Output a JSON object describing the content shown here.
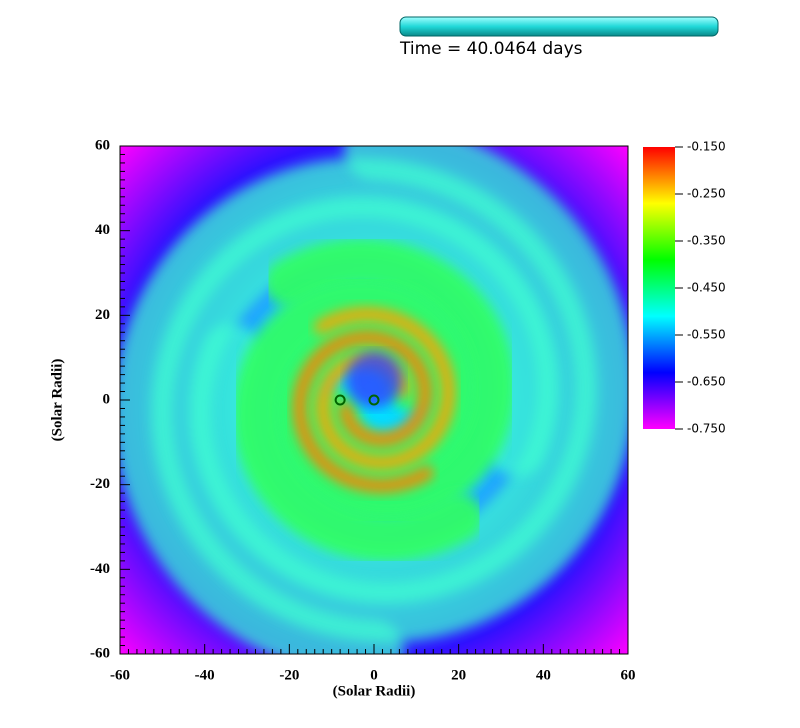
{
  "chart_data": {
    "type": "heatmap",
    "annotation": "Time = 40.0464 days",
    "xlabel": "(Solar Radii)",
    "ylabel": "(Solar Radii)",
    "xlim": [
      -60,
      60
    ],
    "ylim": [
      -60,
      60
    ],
    "xticks": [
      -60,
      -40,
      -20,
      0,
      20,
      40,
      60
    ],
    "yticks": [
      -60,
      -40,
      -20,
      0,
      20,
      40,
      60
    ],
    "clim": [
      -0.75,
      -0.15
    ],
    "colormap": [
      "#ff00ff",
      "#0000ff",
      "#00ffff",
      "#00ff00",
      "#ffff00",
      "#ff0000"
    ],
    "cticks": [
      {
        "value": -0.15,
        "label": "-0.150"
      },
      {
        "value": -0.25,
        "label": "-0.250"
      },
      {
        "value": -0.35,
        "label": "-0.350"
      },
      {
        "value": -0.45,
        "label": "-0.450"
      },
      {
        "value": -0.55,
        "label": "-0.550"
      },
      {
        "value": -0.65,
        "label": "-0.650"
      },
      {
        "value": -0.75,
        "label": "-0.750"
      }
    ],
    "points": {
      "color": "#006400",
      "x": [
        -8,
        0
      ],
      "y": [
        0,
        0
      ]
    }
  }
}
